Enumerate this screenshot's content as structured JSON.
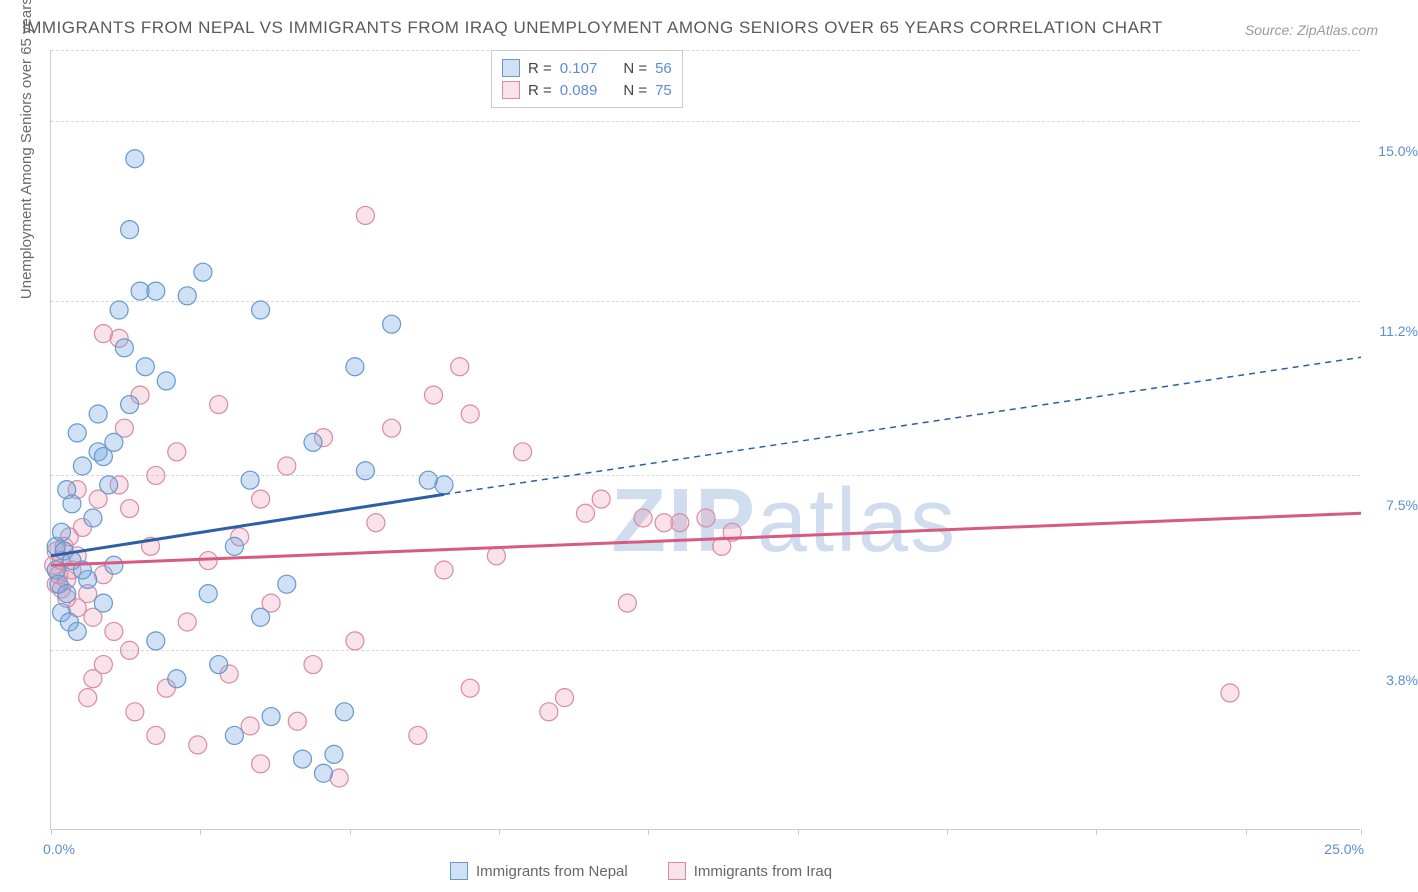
{
  "chart": {
    "type": "scatter-with-regression",
    "title": "IMMIGRANTS FROM NEPAL VS IMMIGRANTS FROM IRAQ UNEMPLOYMENT AMONG SENIORS OVER 65 YEARS CORRELATION CHART",
    "source": "Source: ZipAtlas.com",
    "watermark": "ZIPatlas",
    "y_axis_label": "Unemployment Among Seniors over 65 years",
    "background_color": "#ffffff",
    "grid_color": "#d8d8d8",
    "axis_color": "#cccccc",
    "title_fontsize": 17,
    "label_fontsize": 15,
    "tick_fontsize": 14,
    "tick_color": "#5b8dd6",
    "xlim": [
      0,
      25
    ],
    "ylim": [
      0,
      16.5
    ],
    "y_ticks": [
      {
        "value": 3.8,
        "label": "3.8%"
      },
      {
        "value": 7.5,
        "label": "7.5%"
      },
      {
        "value": 11.2,
        "label": "11.2%"
      },
      {
        "value": 15.0,
        "label": "15.0%"
      }
    ],
    "x_ticks_positions": [
      0,
      2.85,
      5.7,
      8.55,
      11.4,
      14.25,
      17.1,
      19.95,
      22.8,
      25
    ],
    "x_origin_label": "0.0%",
    "x_max_label": "25.0%",
    "series": [
      {
        "name": "Immigrants from Nepal",
        "color_fill": "rgba(120,170,225,0.35)",
        "color_stroke": "#6699cc",
        "line_color": "#2c5fa5",
        "line_width": 3,
        "dash_extension": true,
        "R": "0.107",
        "N": "56",
        "regression_start": {
          "x": 0,
          "y": 5.8
        },
        "regression_solid_end": {
          "x": 7.5,
          "y": 7.1
        },
        "regression_dash_end": {
          "x": 25,
          "y": 10.0
        },
        "points": [
          [
            0.1,
            5.5
          ],
          [
            0.1,
            6.0
          ],
          [
            0.15,
            5.2
          ],
          [
            0.2,
            4.6
          ],
          [
            0.2,
            6.3
          ],
          [
            0.25,
            5.9
          ],
          [
            0.3,
            5.0
          ],
          [
            0.3,
            7.2
          ],
          [
            0.35,
            4.4
          ],
          [
            0.4,
            5.7
          ],
          [
            0.4,
            6.9
          ],
          [
            0.5,
            8.4
          ],
          [
            0.5,
            4.2
          ],
          [
            0.6,
            7.7
          ],
          [
            0.7,
            5.3
          ],
          [
            0.8,
            6.6
          ],
          [
            0.9,
            8.0
          ],
          [
            1.0,
            4.8
          ],
          [
            1.1,
            7.3
          ],
          [
            1.2,
            5.6
          ],
          [
            1.3,
            11.0
          ],
          [
            1.4,
            10.2
          ],
          [
            1.5,
            12.7
          ],
          [
            1.6,
            14.2
          ],
          [
            1.7,
            11.4
          ],
          [
            1.5,
            9.0
          ],
          [
            2.0,
            4.0
          ],
          [
            2.2,
            9.5
          ],
          [
            2.4,
            3.2
          ],
          [
            2.6,
            11.3
          ],
          [
            2.9,
            11.8
          ],
          [
            3.0,
            5.0
          ],
          [
            3.2,
            3.5
          ],
          [
            3.5,
            2.0
          ],
          [
            3.8,
            7.4
          ],
          [
            4.0,
            11.0
          ],
          [
            4.2,
            2.4
          ],
          [
            4.5,
            5.2
          ],
          [
            4.8,
            1.5
          ],
          [
            5.0,
            8.2
          ],
          [
            5.2,
            1.2
          ],
          [
            5.4,
            1.6
          ],
          [
            5.6,
            2.5
          ],
          [
            5.8,
            9.8
          ],
          [
            6.0,
            7.6
          ],
          [
            6.5,
            10.7
          ],
          [
            7.2,
            7.4
          ],
          [
            7.5,
            7.3
          ],
          [
            2.0,
            11.4
          ],
          [
            0.9,
            8.8
          ],
          [
            1.0,
            7.9
          ],
          [
            1.2,
            8.2
          ],
          [
            3.5,
            6.0
          ],
          [
            4.0,
            4.5
          ],
          [
            1.8,
            9.8
          ],
          [
            0.6,
            5.5
          ]
        ]
      },
      {
        "name": "Immigrants from Iraq",
        "color_fill": "rgba(235,150,175,0.28)",
        "color_stroke": "#d98ba3",
        "line_color": "#d85a7f",
        "line_width": 3,
        "dash_extension": false,
        "R": "0.089",
        "N": "75",
        "regression_start": {
          "x": 0,
          "y": 5.6
        },
        "regression_solid_end": {
          "x": 25,
          "y": 6.7
        },
        "points": [
          [
            0.05,
            5.6
          ],
          [
            0.1,
            5.2
          ],
          [
            0.1,
            5.9
          ],
          [
            0.15,
            5.4
          ],
          [
            0.2,
            5.7
          ],
          [
            0.2,
            5.1
          ],
          [
            0.25,
            6.0
          ],
          [
            0.3,
            5.3
          ],
          [
            0.3,
            4.9
          ],
          [
            0.35,
            6.2
          ],
          [
            0.4,
            5.5
          ],
          [
            0.5,
            4.7
          ],
          [
            0.5,
            5.8
          ],
          [
            0.6,
            6.4
          ],
          [
            0.7,
            5.0
          ],
          [
            0.8,
            4.5
          ],
          [
            0.9,
            7.0
          ],
          [
            1.0,
            3.5
          ],
          [
            1.0,
            5.4
          ],
          [
            1.2,
            4.2
          ],
          [
            1.3,
            7.3
          ],
          [
            1.3,
            10.4
          ],
          [
            1.4,
            8.5
          ],
          [
            1.5,
            3.8
          ],
          [
            1.6,
            2.5
          ],
          [
            1.7,
            9.2
          ],
          [
            1.9,
            6.0
          ],
          [
            2.0,
            2.0
          ],
          [
            2.2,
            3.0
          ],
          [
            2.4,
            8.0
          ],
          [
            2.6,
            4.4
          ],
          [
            2.8,
            1.8
          ],
          [
            3.0,
            5.7
          ],
          [
            3.2,
            9.0
          ],
          [
            3.4,
            3.3
          ],
          [
            3.6,
            6.2
          ],
          [
            3.8,
            2.2
          ],
          [
            4.0,
            1.4
          ],
          [
            4.2,
            4.8
          ],
          [
            4.5,
            7.7
          ],
          [
            4.7,
            2.3
          ],
          [
            5.0,
            3.5
          ],
          [
            5.2,
            8.3
          ],
          [
            5.5,
            1.1
          ],
          [
            5.8,
            4.0
          ],
          [
            6.0,
            13.0
          ],
          [
            6.2,
            6.5
          ],
          [
            6.5,
            8.5
          ],
          [
            7.0,
            2.0
          ],
          [
            7.3,
            9.2
          ],
          [
            7.5,
            5.5
          ],
          [
            7.8,
            9.8
          ],
          [
            8.0,
            8.8
          ],
          [
            8.0,
            3.0
          ],
          [
            8.5,
            5.8
          ],
          [
            9.0,
            8.0
          ],
          [
            9.5,
            2.5
          ],
          [
            10.2,
            6.7
          ],
          [
            10.5,
            7.0
          ],
          [
            11.0,
            4.8
          ],
          [
            12.0,
            6.5
          ],
          [
            12.5,
            6.6
          ],
          [
            12.8,
            6.0
          ],
          [
            13.0,
            6.3
          ],
          [
            9.8,
            2.8
          ],
          [
            1.0,
            10.5
          ],
          [
            0.8,
            3.2
          ],
          [
            0.7,
            2.8
          ],
          [
            0.5,
            7.2
          ],
          [
            1.5,
            6.8
          ],
          [
            2.0,
            7.5
          ],
          [
            4.0,
            7.0
          ],
          [
            22.5,
            2.9
          ],
          [
            11.3,
            6.6
          ],
          [
            11.7,
            6.5
          ]
        ]
      }
    ],
    "stats_legend": {
      "R_label": "R  =",
      "N_label": "N  ="
    },
    "bottom_legend_labels": [
      "Immigrants from Nepal",
      "Immigrants from Iraq"
    ]
  }
}
